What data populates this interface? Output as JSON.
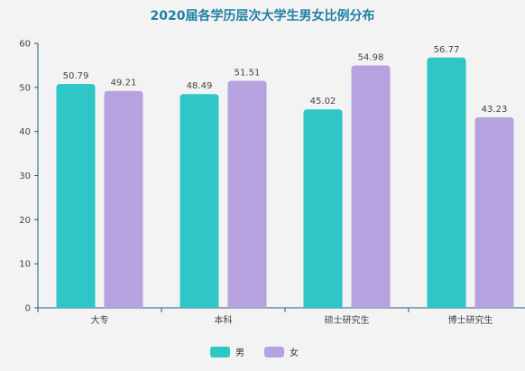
{
  "chart_data": {
    "type": "bar",
    "title": "2020届各学历层次大学生男女比例分布",
    "categories": [
      "大专",
      "本科",
      "硕士研究生",
      "博士研究生"
    ],
    "series": [
      {
        "name": "男",
        "values": [
          50.79,
          48.49,
          45.02,
          56.77
        ],
        "color": "#2ec6c6"
      },
      {
        "name": "女",
        "values": [
          49.21,
          51.51,
          54.98,
          43.23
        ],
        "color": "#b6a2de"
      }
    ],
    "ylim": [
      0,
      60
    ],
    "yticks": [
      0,
      10,
      20,
      30,
      40,
      50,
      60
    ],
    "grid": false,
    "legend_position": "bottom-center",
    "axis_color": "#1a5f7a"
  }
}
